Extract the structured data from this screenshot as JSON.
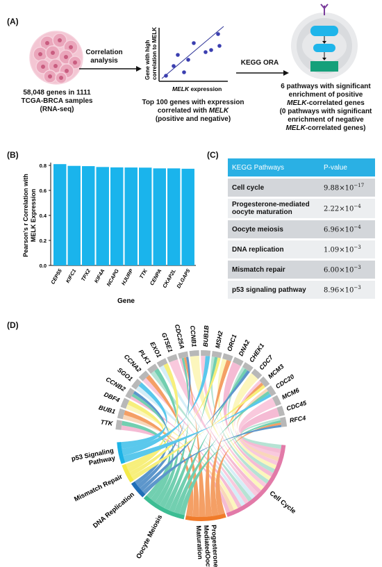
{
  "panel_a": {
    "label": "(A)",
    "left_caption": [
      "58,048 genes in 1111",
      "TCGA-BRCA samples",
      "(RNA-seq)"
    ],
    "arrow1_label": [
      "Correlation",
      "analysis"
    ],
    "scatter_ylabel": [
      "Gene with high",
      "correlation to MELK"
    ],
    "scatter_xlabel_italic": "MELK",
    "scatter_xlabel_rest": " expression",
    "mid_caption_1": "Top 100 genes with expression",
    "mid_caption_2": "correlated with ",
    "mid_caption_2_italic": "MELK",
    "mid_caption_3": "(positive and negative)",
    "arrow2_label": "KEGG ORA",
    "right_caption_1": "6 pathways with significant",
    "right_caption_2": "enrichment of positive",
    "right_caption_3_italic": "MELK",
    "right_caption_3_rest": "-correlated genes",
    "right_caption_4": "(0 pathways with significant",
    "right_caption_5": "enrichment of negative",
    "right_caption_6_italic": "MELK",
    "right_caption_6_rest": "-correlated genes)",
    "colors": {
      "cells": "#e8a4b8",
      "dot": "#3b3fb0",
      "cyan": "#1fb5ea",
      "green": "#15a07a"
    }
  },
  "panel_b": {
    "label": "(B)",
    "chart_data": {
      "type": "bar",
      "categories": [
        "CEP55",
        "KIFC1",
        "TPX2",
        "KIF4A",
        "NCAPG",
        "HJURP",
        "TTK",
        "CENPA",
        "CKAP2L",
        "DLGAP5"
      ],
      "values": [
        0.81,
        0.796,
        0.794,
        0.787,
        0.784,
        0.783,
        0.782,
        0.776,
        0.776,
        0.773
      ],
      "ylabel": "Pearson's r Correlation with MELK Expression",
      "xlabel": "Gene",
      "ylim": [
        0,
        0.8
      ],
      "yticks": [
        "0.0",
        "0.2",
        "0.4",
        "0.6",
        "0.8"
      ],
      "bar_color": "#1ab4ec"
    }
  },
  "panel_c": {
    "label": "(C)",
    "header": [
      "KEGG Pathways",
      "P-value"
    ],
    "rows": [
      {
        "pathway": "Cell cycle",
        "p_mant": "9.88×10",
        "p_exp": "−17"
      },
      {
        "pathway": "Progesterone-mediated oocyte maturation",
        "p_mant": "2.22×10",
        "p_exp": "−4"
      },
      {
        "pathway": "Oocyte meiosis",
        "p_mant": "6.96×10",
        "p_exp": "−4"
      },
      {
        "pathway": "DNA replication",
        "p_mant": "1.09×10",
        "p_exp": "−3"
      },
      {
        "pathway": "Mismatch repair",
        "p_mant": "6.00×10",
        "p_exp": "−3"
      },
      {
        "pathway": "p53 signaling pathway",
        "p_mant": "8.96×10",
        "p_exp": "−3"
      }
    ]
  },
  "panel_d": {
    "label": "(D)",
    "genes": [
      "TTK",
      "BUB1",
      "DBF4",
      "CCNB2",
      "SGO1",
      "CCNA2",
      "PLK1",
      "EXO1",
      "GTSE1",
      "CDC25A",
      "CCNB1",
      "BUB1B",
      "MSH2",
      "ORC1",
      "DNA2",
      "CHEK1",
      "CDC7",
      "MCM3",
      "CDC20",
      "MCM6",
      "CDC45",
      "RFC4"
    ],
    "pathways": [
      {
        "name": "p53 Signaling Pathway",
        "lines": [
          "p53 Signaling",
          "Pathway"
        ],
        "color": "#1cb3e6"
      },
      {
        "name": "Mismatch Repair",
        "lines": [
          "Mismatch Repair"
        ],
        "color": "#f4ea4a"
      },
      {
        "name": "DNA Replication",
        "lines": [
          "DNA Replication"
        ],
        "color": "#1f6fb8"
      },
      {
        "name": "Oocyte Meiosis",
        "lines": [
          "Oocyte Meiosis"
        ],
        "color": "#3cbd93"
      },
      {
        "name": "Progesterone-MediatedOocyte Maturation",
        "lines": [
          "Progesterone−",
          "MediatedOocyte",
          "Maturation"
        ],
        "color": "#f07b2a"
      },
      {
        "name": "Cell Cycle",
        "lines": [
          "Cell Cycle"
        ],
        "color": "#e27aa8"
      }
    ],
    "gene_color": "#b8b8b8",
    "ribbon_colors": [
      "#f2a2c4",
      "#9bd9c4",
      "#f7c8a0",
      "#c5e8f5",
      "#fbf3a5",
      "#f7b5d0"
    ]
  }
}
